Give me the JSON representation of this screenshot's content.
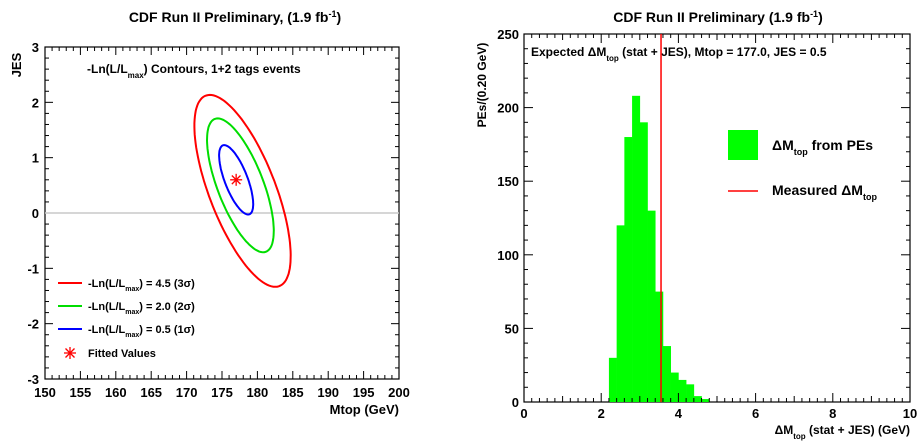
{
  "chart_data": [
    {
      "type": "line",
      "title": "CDF Run II Preliminary, (1.9 fb",
      "title_sup": "-1",
      "title_end": ")",
      "xlabel": "Mtop (GeV)",
      "ylabel": "JES",
      "xlim": [
        150,
        200
      ],
      "ylim": [
        -3,
        3
      ],
      "x_ticks": [
        "150",
        "155",
        "160",
        "165",
        "170",
        "175",
        "180",
        "185",
        "190",
        "195",
        "200"
      ],
      "y_ticks": [
        "-3",
        "-2",
        "-1",
        "0",
        "1",
        "2",
        "3"
      ],
      "annotation": {
        "pre": "-Ln(L/L",
        "sub": "max",
        "post": ") Contours,  1+2 tags events"
      },
      "reference_line_y": 0,
      "fitted_value": {
        "x": 177.0,
        "y": 0.6
      },
      "series": [
        {
          "label_pre": "-Ln(L/L",
          "label_sub": "max",
          "label_post": ") = 4.5 (3σ)",
          "color": "#ff0000",
          "center": [
            177.9,
            0.4
          ],
          "semi_major": [
            6.5,
            -1.5
          ],
          "semi_minor": [
            2.0,
            0.87
          ]
        },
        {
          "label_pre": "-Ln(L/L",
          "label_sub": "max",
          "label_post": ") = 2.0 (2σ)",
          "color": "#00dd00",
          "center": [
            177.6,
            0.5
          ],
          "semi_major": [
            4.5,
            -1.05
          ],
          "semi_minor": [
            1.4,
            0.6
          ]
        },
        {
          "label_pre": "-Ln(L/L",
          "label_sub": "max",
          "label_post": ") = 0.5 (1σ)",
          "color": "#0000ff",
          "center": [
            177.0,
            0.6
          ],
          "semi_major": [
            2.3,
            -0.55
          ],
          "semi_minor": [
            0.7,
            0.3
          ]
        }
      ],
      "fitted_label": "Fitted Values",
      "fitted_color": "#ff0000"
    },
    {
      "type": "bar",
      "title": "CDF Run II Preliminary (1.9 fb",
      "title_sup": "-1",
      "title_end": ")",
      "xlabel_pre": "ΔM",
      "xlabel_sub": "top",
      "xlabel_post": " (stat + JES) (GeV)",
      "ylabel": "PEs/(0.20 GeV)",
      "xlim": [
        0,
        10
      ],
      "ylim": [
        0,
        250
      ],
      "x_ticks": [
        "0",
        "2",
        "4",
        "6",
        "8",
        "10"
      ],
      "y_ticks": [
        "0",
        "50",
        "100",
        "150",
        "200",
        "250"
      ],
      "annotation": {
        "pre": "Expected ΔM",
        "sub": "top",
        "post": " (stat + JES), Mtop = 177.0, JES = 0.5"
      },
      "bin_width": 0.2,
      "bin_starts": [
        2.2,
        2.4,
        2.6,
        2.8,
        3.0,
        3.2,
        3.4,
        3.6,
        3.8,
        4.0,
        4.2,
        4.4,
        4.6
      ],
      "values": [
        30,
        120,
        180,
        208,
        190,
        130,
        75,
        38,
        20,
        15,
        12,
        4,
        2
      ],
      "bar_color": "#00ff00",
      "measured_value": 3.55,
      "measured_color": "#ff0000",
      "legend": [
        {
          "pre": "ΔM",
          "sub": "top",
          "post": " from PEs"
        },
        {
          "pre": "Measured ΔM",
          "sub": "top",
          "post": ""
        }
      ]
    }
  ]
}
